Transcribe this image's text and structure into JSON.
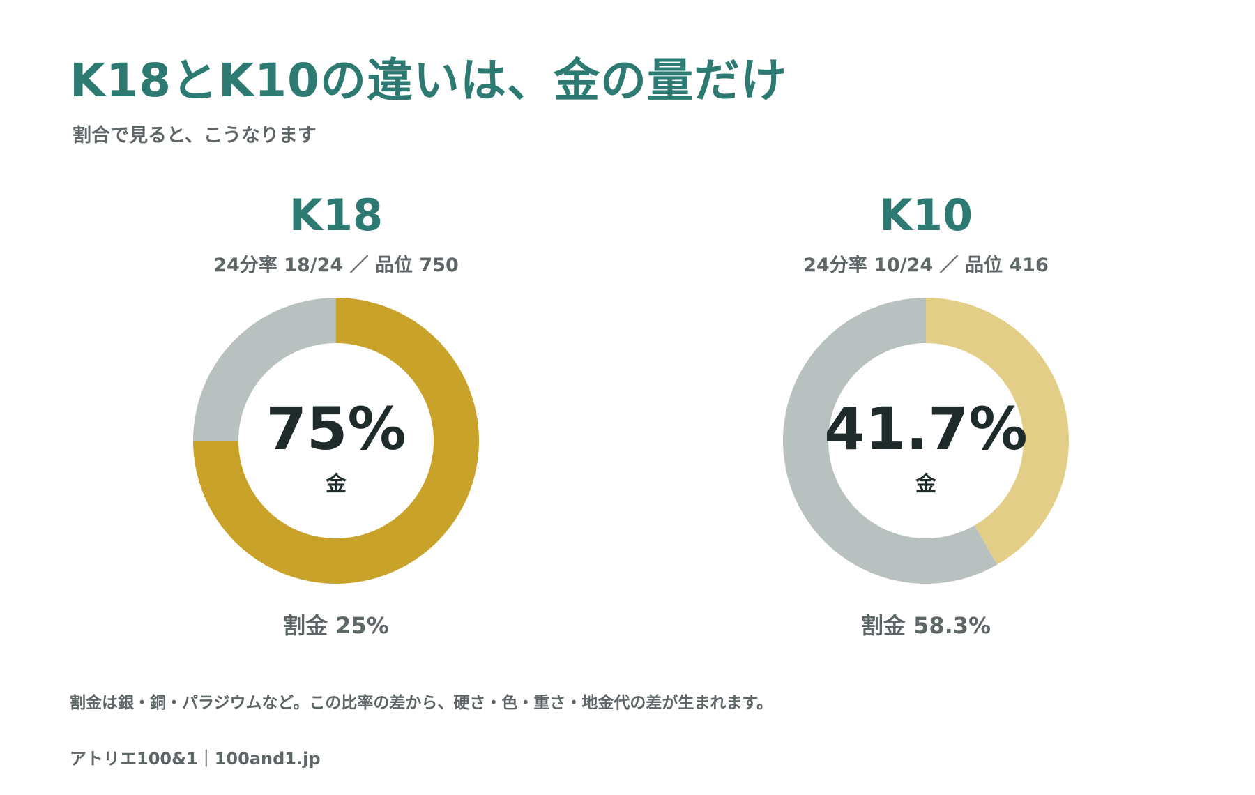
{
  "header": {
    "title": "K18とK10の違いは、金の量だけ",
    "subtitle": "割合で見ると、こうなります"
  },
  "chart_data": [
    {
      "type": "pie",
      "title": "K18",
      "subtitle": "24分率 18/24 ／ 品位 750",
      "center_value": "75%",
      "center_label": "金",
      "alloy_label": "割金 25%",
      "slices": [
        {
          "label": "金",
          "value": 75,
          "color": "#c9a229"
        },
        {
          "label": "割金",
          "value": 25,
          "color": "#b9c0c0"
        }
      ]
    },
    {
      "type": "pie",
      "title": "K10",
      "subtitle": "24分率 10/24 ／ 品位 416",
      "center_value": "41.7%",
      "center_label": "金",
      "alloy_label": "割金 58.3%",
      "slices": [
        {
          "label": "金",
          "value": 41.7,
          "color": "#e3ce88"
        },
        {
          "label": "割金",
          "value": 58.3,
          "color": "#b9c0c0"
        }
      ]
    }
  ],
  "footer": {
    "note": "割金は銀・銅・パラジウムなど。この比率の差から、硬さ・色・重さ・地金代の差が生まれます。",
    "credit": "アトリエ100&1｜100and1.jp"
  }
}
